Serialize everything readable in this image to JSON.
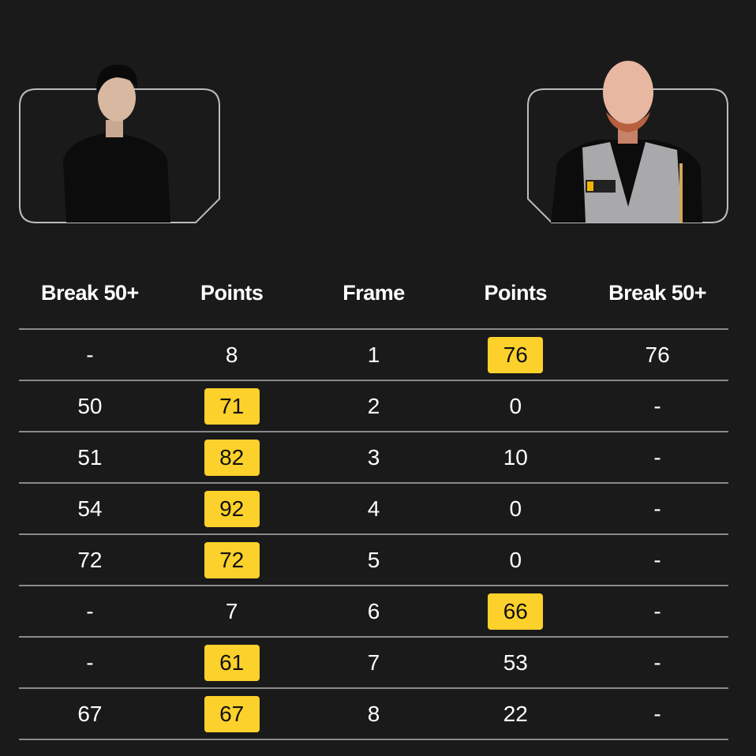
{
  "players": {
    "left": {
      "photo": "player-photo-black-shirt"
    },
    "right": {
      "photo": "player-photo-grey-waistcoat"
    }
  },
  "table": {
    "headers": [
      "Break 50+",
      "Points",
      "Frame",
      "Points",
      "Break 50+"
    ],
    "rows": [
      {
        "left_break": "-",
        "left_points": "8",
        "frame": "1",
        "right_points": "76",
        "right_break": "76",
        "winner": "right"
      },
      {
        "left_break": "50",
        "left_points": "71",
        "frame": "2",
        "right_points": "0",
        "right_break": "-",
        "winner": "left"
      },
      {
        "left_break": "51",
        "left_points": "82",
        "frame": "3",
        "right_points": "10",
        "right_break": "-",
        "winner": "left"
      },
      {
        "left_break": "54",
        "left_points": "92",
        "frame": "4",
        "right_points": "0",
        "right_break": "-",
        "winner": "left"
      },
      {
        "left_break": "72",
        "left_points": "72",
        "frame": "5",
        "right_points": "0",
        "right_break": "-",
        "winner": "left"
      },
      {
        "left_break": "-",
        "left_points": "7",
        "frame": "6",
        "right_points": "66",
        "right_break": "-",
        "winner": "right"
      },
      {
        "left_break": "-",
        "left_points": "61",
        "frame": "7",
        "right_points": "53",
        "right_break": "-",
        "winner": "left"
      },
      {
        "left_break": "67",
        "left_points": "67",
        "frame": "8",
        "right_points": "22",
        "right_break": "-",
        "winner": "left"
      }
    ]
  },
  "colors": {
    "background": "#1a1a1a",
    "highlight": "#fdd12b",
    "divider": "#8a8a8a"
  }
}
